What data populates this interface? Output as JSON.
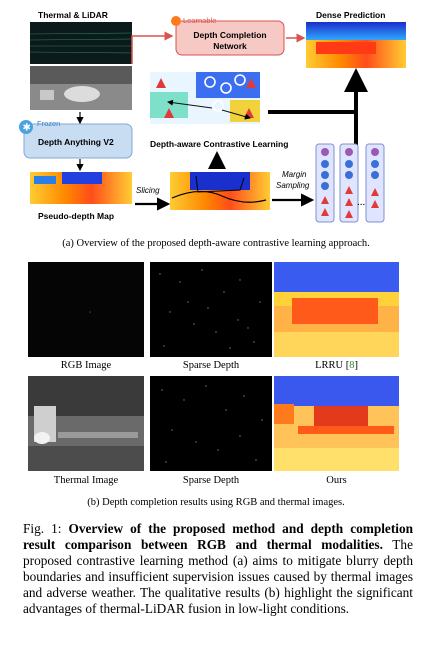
{
  "diagram": {
    "thermal_lidar_label": "Thermal & LiDAR",
    "frozen_label": "Frozen",
    "depth_anything_label": "Depth Anything V2",
    "learnable_label": "Learnable",
    "depth_completion_label_line1": "Depth Completion",
    "depth_completion_label_line2": "Network",
    "dense_prediction_label": "Dense Prediction",
    "contrastive_label": "Depth-aware Contrastive Learning",
    "pseudo_depth_label": "Pseudo-depth Map",
    "slicing_label": "Slicing",
    "margin_sampling_line1": "Margin",
    "margin_sampling_line2": "Sampling",
    "ellipsis": "...",
    "colors": {
      "box_blue": "#c8dcf2",
      "box_border": "#7fa8d6",
      "box_red": "#f6c9c4",
      "box_red_border": "#d9534f",
      "arrow_red": "#d9534f"
    }
  },
  "caption_a": "(a) Overview of the proposed depth-aware contrastive learning approach.",
  "grid": {
    "row1_labels": [
      "RGB Image",
      "Sparse Depth",
      "LRRU ["
    ],
    "lrru_ref": "8",
    "lrru_close": "]",
    "row2_labels": [
      "Thermal Image",
      "Sparse Depth",
      "Ours"
    ]
  },
  "caption_b": "(b) Depth completion results using RGB and thermal images.",
  "figure_caption": {
    "prefix": "Fig. 1: ",
    "bold": "Overview of the proposed method and depth completion result comparison between RGB and thermal modalities.",
    "rest": " The proposed contrastive learning method (a) aims to mitigate blurry depth boundaries and insufficient supervision issues caused by thermal images and adverse weather. The qualitative results (b) highlight the significant advantages of thermal-LiDAR fusion in low-light conditions."
  }
}
